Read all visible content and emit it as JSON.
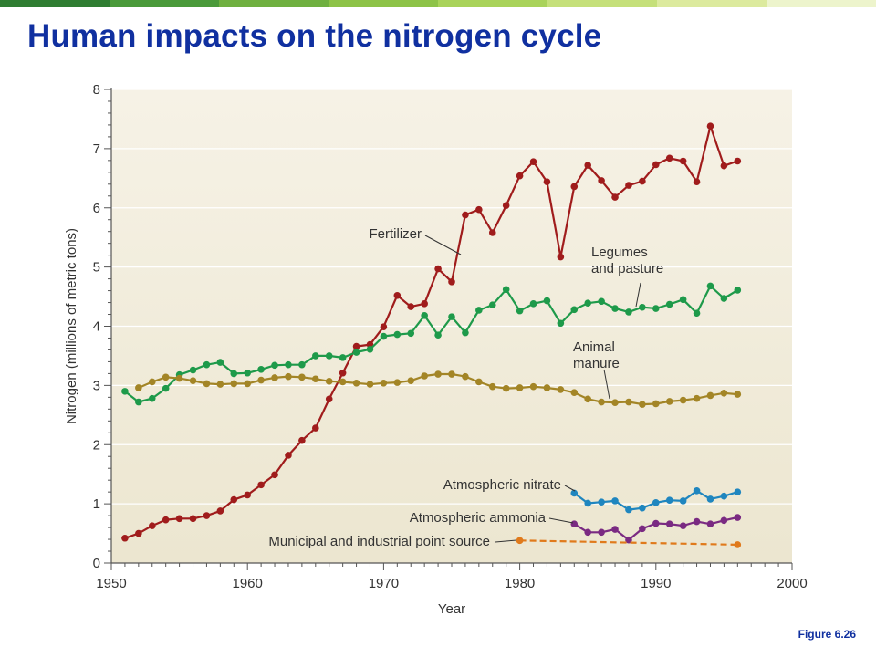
{
  "slide": {
    "title": "Human impacts on the nitrogen cycle",
    "figure_label": "Figure 6.26",
    "bar_colors": [
      "#2f7d32",
      "#4a9a3a",
      "#6fb040",
      "#8dc348",
      "#a9d35a",
      "#c5e07a",
      "#dcea9e",
      "#edf4cc"
    ]
  },
  "chart_data": {
    "type": "line",
    "title": "",
    "xlabel": "Year",
    "ylabel": "Nitrogen (millions of metric tons)",
    "xlim": [
      1950,
      2000
    ],
    "ylim": [
      0,
      8
    ],
    "xticks": [
      1950,
      1960,
      1970,
      1980,
      1990,
      2000
    ],
    "yticks": [
      0,
      1,
      2,
      3,
      4,
      5,
      6,
      7,
      8
    ],
    "grid": true,
    "background": "#ece6d0",
    "series": [
      {
        "name": "Fertilizer",
        "color": "#a01c1c",
        "x": [
          1951,
          1952,
          1953,
          1954,
          1955,
          1956,
          1957,
          1958,
          1959,
          1960,
          1961,
          1962,
          1963,
          1964,
          1965,
          1966,
          1967,
          1968,
          1969,
          1970,
          1971,
          1972,
          1973,
          1974,
          1975,
          1976,
          1977,
          1978,
          1979,
          1980,
          1981,
          1982,
          1983,
          1984,
          1985,
          1986,
          1987,
          1988,
          1989,
          1990,
          1991,
          1992,
          1993,
          1994,
          1995,
          1996
        ],
        "y": [
          0.42,
          0.5,
          0.63,
          0.73,
          0.75,
          0.75,
          0.8,
          0.88,
          1.07,
          1.15,
          1.32,
          1.49,
          1.82,
          2.07,
          2.28,
          2.77,
          3.21,
          3.66,
          3.69,
          3.99,
          4.52,
          4.33,
          4.38,
          4.97,
          4.75,
          5.88,
          5.97,
          5.58,
          6.04,
          6.54,
          6.78,
          6.44,
          5.17,
          6.36,
          6.72,
          6.46,
          6.18,
          6.38,
          6.45,
          6.73,
          6.84,
          6.79,
          6.44,
          7.38,
          6.71,
          6.79
        ]
      },
      {
        "name": "Legumes and pasture",
        "color": "#1e9a4a",
        "x": [
          1951,
          1952,
          1953,
          1954,
          1955,
          1956,
          1957,
          1958,
          1959,
          1960,
          1961,
          1962,
          1963,
          1964,
          1965,
          1966,
          1967,
          1968,
          1969,
          1970,
          1971,
          1972,
          1973,
          1974,
          1975,
          1976,
          1977,
          1978,
          1979,
          1980,
          1981,
          1982,
          1983,
          1984,
          1985,
          1986,
          1987,
          1988,
          1989,
          1990,
          1991,
          1992,
          1993,
          1994,
          1995,
          1996
        ],
        "y": [
          2.9,
          2.72,
          2.78,
          2.95,
          3.18,
          3.26,
          3.35,
          3.39,
          3.2,
          3.21,
          3.27,
          3.34,
          3.35,
          3.35,
          3.5,
          3.5,
          3.47,
          3.56,
          3.61,
          3.83,
          3.86,
          3.88,
          4.18,
          3.85,
          4.16,
          3.89,
          4.27,
          4.36,
          4.62,
          4.26,
          4.38,
          4.43,
          4.05,
          4.28,
          4.39,
          4.42,
          4.3,
          4.24,
          4.32,
          4.3,
          4.37,
          4.45,
          4.22,
          4.68,
          4.47,
          4.61
        ]
      },
      {
        "name": "Animal manure",
        "color": "#a38526",
        "x": [
          1952,
          1953,
          1954,
          1955,
          1956,
          1957,
          1958,
          1959,
          1960,
          1961,
          1962,
          1963,
          1964,
          1965,
          1966,
          1967,
          1968,
          1969,
          1970,
          1971,
          1972,
          1973,
          1974,
          1975,
          1976,
          1977,
          1978,
          1979,
          1980,
          1981,
          1982,
          1983,
          1984,
          1985,
          1986,
          1987,
          1988,
          1989,
          1990,
          1991,
          1992,
          1993,
          1994,
          1995,
          1996
        ],
        "y": [
          2.96,
          3.06,
          3.14,
          3.12,
          3.08,
          3.03,
          3.02,
          3.03,
          3.03,
          3.09,
          3.13,
          3.15,
          3.14,
          3.11,
          3.07,
          3.06,
          3.04,
          3.02,
          3.04,
          3.05,
          3.08,
          3.16,
          3.19,
          3.19,
          3.15,
          3.06,
          2.98,
          2.95,
          2.96,
          2.98,
          2.96,
          2.93,
          2.88,
          2.77,
          2.72,
          2.71,
          2.72,
          2.68,
          2.69,
          2.73,
          2.75,
          2.78,
          2.83,
          2.87,
          2.85
        ]
      },
      {
        "name": "Atmospheric nitrate",
        "color": "#1f86bf",
        "x": [
          1984,
          1985,
          1986,
          1987,
          1988,
          1989,
          1990,
          1991,
          1992,
          1993,
          1994,
          1995,
          1996
        ],
        "y": [
          1.18,
          1.01,
          1.03,
          1.05,
          0.9,
          0.93,
          1.02,
          1.06,
          1.05,
          1.22,
          1.08,
          1.13,
          1.2
        ]
      },
      {
        "name": "Atmospheric ammonia",
        "color": "#7a2a82",
        "x": [
          1984,
          1985,
          1986,
          1987,
          1988,
          1989,
          1990,
          1991,
          1992,
          1993,
          1994,
          1995,
          1996
        ],
        "y": [
          0.66,
          0.52,
          0.52,
          0.57,
          0.39,
          0.58,
          0.67,
          0.66,
          0.63,
          0.7,
          0.66,
          0.72,
          0.77
        ]
      },
      {
        "name": "Municipal and industrial point source",
        "color": "#e07a1c",
        "dashed": true,
        "x": [
          1980,
          1996
        ],
        "y": [
          0.38,
          0.31
        ]
      }
    ],
    "annotations": [
      {
        "lines": [
          "Fertilizer"
        ],
        "series": 0,
        "anchor": "end"
      },
      {
        "lines": [
          "Legumes",
          "and pasture"
        ],
        "series": 1,
        "anchor": "start"
      },
      {
        "lines": [
          "Animal",
          "manure"
        ],
        "series": 2,
        "anchor": "start"
      },
      {
        "lines": [
          "Atmospheric nitrate"
        ],
        "series": 3,
        "anchor": "end"
      },
      {
        "lines": [
          "Atmospheric ammonia"
        ],
        "series": 4,
        "anchor": "end"
      },
      {
        "lines": [
          "Municipal and industrial point source"
        ],
        "series": 5,
        "anchor": "end"
      }
    ]
  }
}
